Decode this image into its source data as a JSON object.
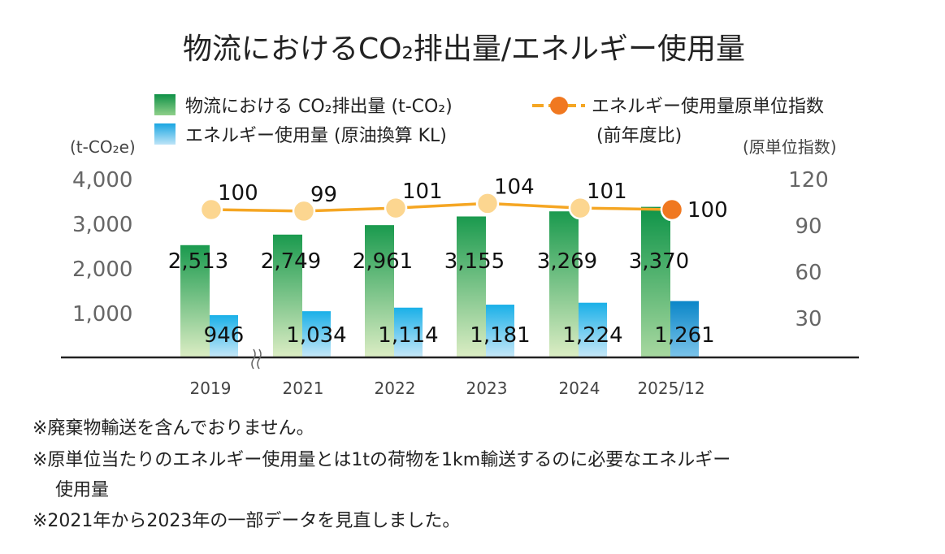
{
  "chart_data": {
    "type": "bar",
    "title": "物流におけるCO₂排出量/エネルギー使用量",
    "categories": [
      "2019",
      "2021",
      "2022",
      "2023",
      "2024",
      "2025/12"
    ],
    "series": [
      {
        "name": "物流における CO₂排出量 (t-CO₂)",
        "kind": "bar",
        "axis": "left",
        "values": [
          2513,
          2749,
          2961,
          3155,
          3269,
          3370
        ],
        "labels": [
          "2,513",
          "2,749",
          "2,961",
          "3,155",
          "3,269",
          "3,370"
        ]
      },
      {
        "name": "エネルギー使用量 (原油換算 KL)",
        "kind": "bar",
        "axis": "left",
        "values": [
          946,
          1034,
          1114,
          1181,
          1224,
          1261
        ],
        "labels": [
          "946",
          "1,034",
          "1,114",
          "1,181",
          "1,224",
          "1,261"
        ]
      },
      {
        "name": "エネルギー使用量原単位指数",
        "name_line2": "(前年度比)",
        "kind": "line",
        "axis": "right",
        "values": [
          100,
          99,
          101,
          104,
          101,
          100
        ],
        "labels": [
          "100",
          "99",
          "101",
          "104",
          "101",
          "100"
        ]
      }
    ],
    "left_axis": {
      "unit": "(t-CO₂e)",
      "ticks": [
        "1,000",
        "2,000",
        "3,000",
        "4,000"
      ],
      "tick_values": [
        1000,
        2000,
        3000,
        4000
      ],
      "range": [
        0,
        4000
      ],
      "broken": true
    },
    "right_axis": {
      "unit": "(原単位指数)",
      "ticks": [
        "30",
        "60",
        "90",
        "120"
      ],
      "tick_values": [
        30,
        60,
        90,
        120
      ],
      "range": [
        0,
        120
      ]
    },
    "grid": false,
    "legend_position": "top",
    "colors": {
      "co2_top": "#1a9a4e",
      "co2_bottom": "#dcedc4",
      "energy_top": "#1ab0e8",
      "energy_bottom": "#c8e8f8",
      "line": "#f5a623",
      "marker": "#fcd690",
      "marker_highlight": "#f07820",
      "axis_label": "#666666"
    }
  },
  "notes": [
    "※廃棄物輸送を含んでおりません。",
    "※原単位当たりのエネルギー使用量とは1tの荷物を1km輸送するのに必要なエネルギー",
    "使用量",
    "※2021年から2023年の一部データを見直しました。"
  ]
}
